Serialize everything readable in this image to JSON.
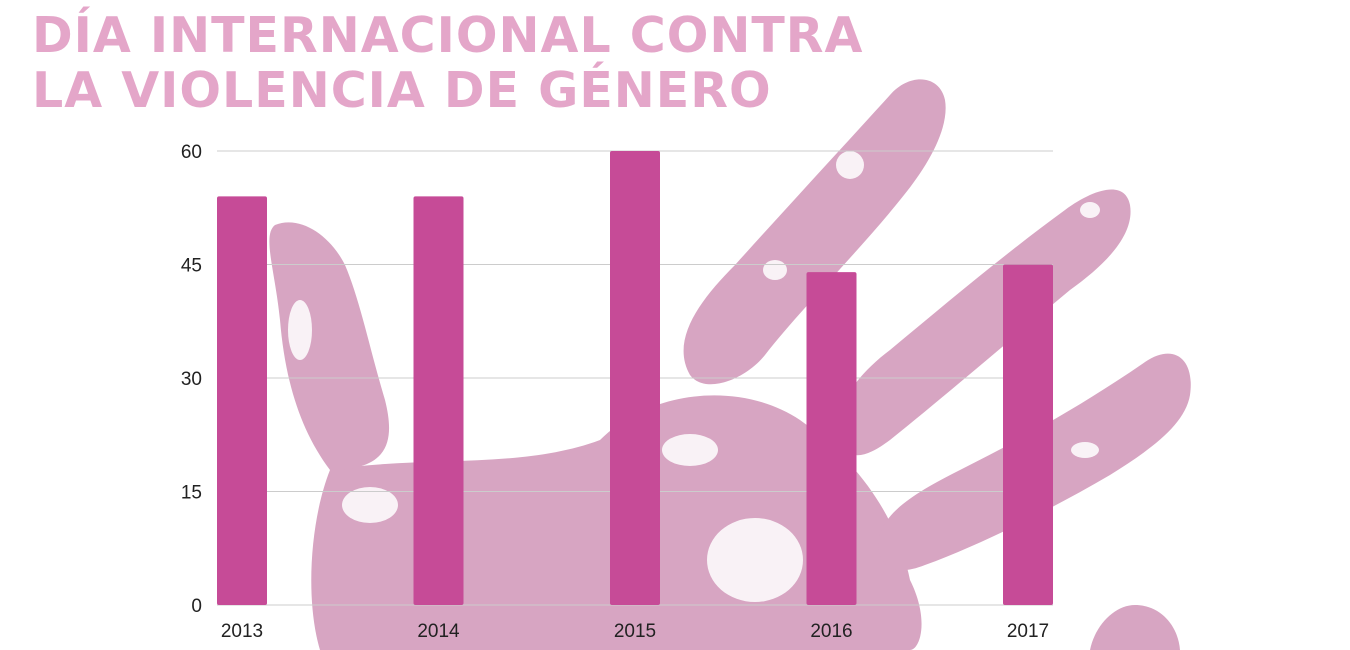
{
  "header": {
    "title_line1": "DÍA INTERNACIONAL CONTRA",
    "title_line2": "LA VIOLENCIA DE GÉNERO"
  },
  "colors": {
    "bar": "#c64b97",
    "title": "#e4a6c9",
    "hand": "#d7a5c2",
    "gridline": "#cccccc",
    "tick_text": "#222222"
  },
  "background_image": {
    "icon": "handprint-icon"
  },
  "chart_data": {
    "type": "bar",
    "categories": [
      "2013",
      "2014",
      "2015",
      "2016",
      "2017"
    ],
    "values": [
      54,
      54,
      60,
      44,
      45
    ],
    "title": "",
    "xlabel": "",
    "ylabel": "",
    "ylim": [
      0,
      60
    ],
    "yticks": [
      0,
      15,
      30,
      45,
      60
    ],
    "grid": true,
    "legend": "none"
  }
}
